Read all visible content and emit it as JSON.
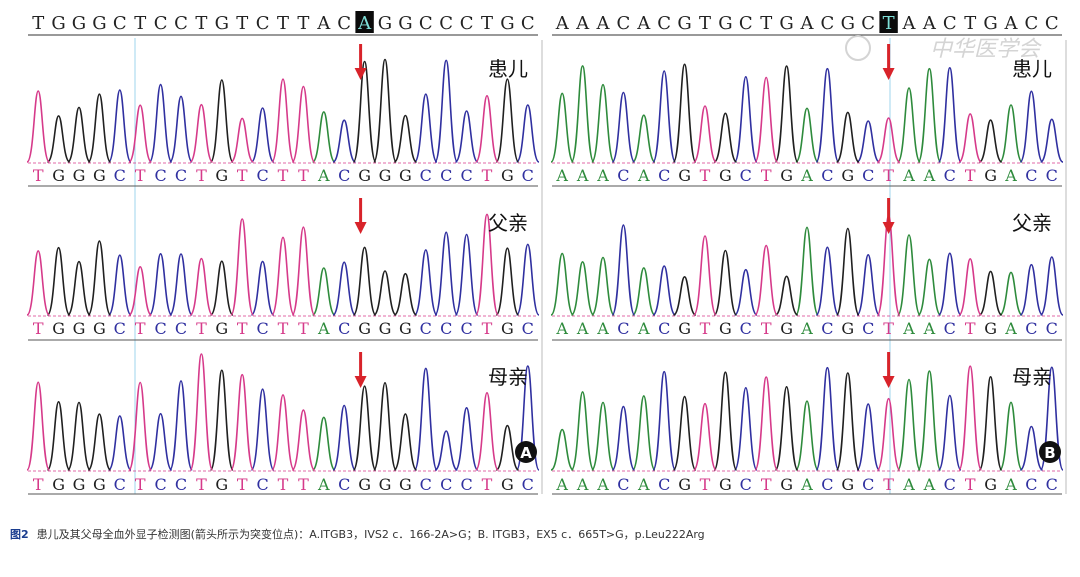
{
  "panel_a": {
    "letter": "A",
    "reference": "TGGGCTCCTGTCTTACAGGCCCTGC",
    "highlight_index": 16,
    "rows": [
      {
        "label": "患儿",
        "called": "TGGGCTCCTGTCTTACGGGCCCTGC"
      },
      {
        "label": "父亲",
        "called": "TGGGCTCCTGTCTTACGGGCCCTGC"
      },
      {
        "label": "母亲",
        "called": "TGGGCTCCTGTCTTACGGGCCCTGC"
      }
    ]
  },
  "panel_b": {
    "letter": "B",
    "reference": "AAACACGTGCTGACGCTAACTGACC",
    "highlight_index": 16,
    "rows": [
      {
        "label": "患儿",
        "called": "AAACACGTGCTGACGCTAACTGACC"
      },
      {
        "label": "父亲",
        "called": "AAACACGTGCTGACGCTAACTGACC"
      },
      {
        "label": "母亲",
        "called": "AAACACGTGCTGACGCTAACTGACC"
      }
    ]
  },
  "watermark": "中华医学会",
  "base_colors": {
    "A": "#2e8b3c",
    "C": "#3030a0",
    "G": "#202020",
    "T": "#d63a8a"
  },
  "arrow_color": "#d8232a",
  "caption": {
    "fig_label": "图2",
    "text": "患儿及其父母全血外显子检测图(箭头所示为突变位点)：A.ITGB3，IVS2 c．166-2A>G；B. ITGB3，EX5 c．665T>G，p.Leu222Arg"
  }
}
